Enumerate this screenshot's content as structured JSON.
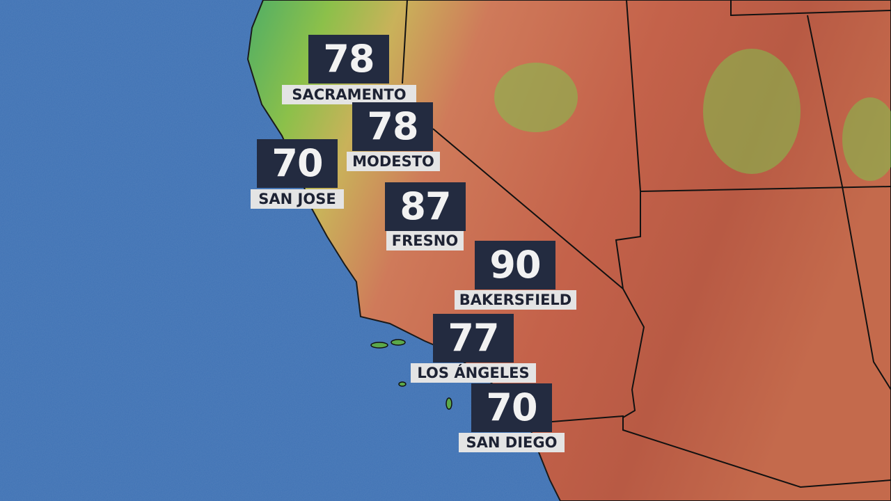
{
  "map": {
    "colors": {
      "ocean": "#3f72b4",
      "coast_green": "#5fb04a",
      "desert_red": "#c4624a",
      "label_box": "#232b40",
      "name_box": "#e4e4e4"
    },
    "cities": [
      {
        "name": "SACRAMENTO",
        "temp": "78"
      },
      {
        "name": "MODESTO",
        "temp": "78"
      },
      {
        "name": "SAN JOSE",
        "temp": "70"
      },
      {
        "name": "FRESNO",
        "temp": "87"
      },
      {
        "name": "BAKERSFIELD",
        "temp": "90"
      },
      {
        "name": "LOS ÁNGELES",
        "temp": "77"
      },
      {
        "name": "SAN DIEGO",
        "temp": "70"
      }
    ]
  }
}
